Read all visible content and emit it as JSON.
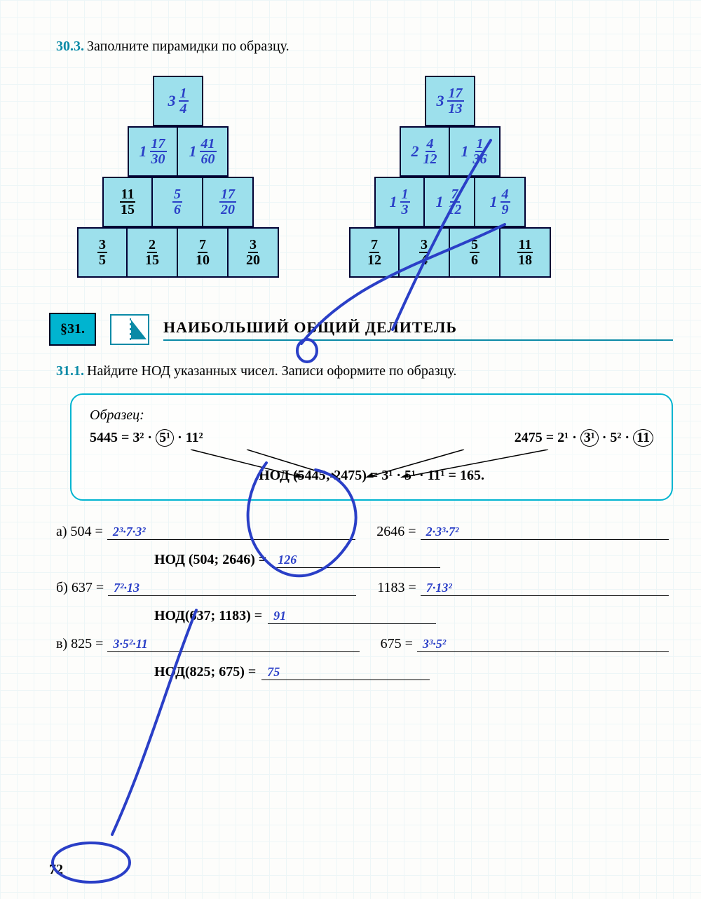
{
  "page_number": "72",
  "colors": {
    "accent": "#0a8aa6",
    "brick_fill": "#9de0ec",
    "brick_border": "#003355",
    "handwriting": "#2a3fc7",
    "sample_border": "#00b4d0",
    "text": "#000000",
    "grid": "#e4f3f6",
    "background": "#fdfdfb"
  },
  "ex30_3": {
    "number": "30.3.",
    "text": "Заполните пирамидки по образцу.",
    "pyramid_left": {
      "row4": [
        {
          "w": "3",
          "n": "1",
          "d": "4",
          "hw": true
        }
      ],
      "row3": [
        {
          "w": "1",
          "n": "17",
          "d": "30",
          "hw": true
        },
        {
          "w": "1",
          "n": "41",
          "d": "60",
          "hw": true
        }
      ],
      "row2": [
        {
          "n": "11",
          "d": "15",
          "hw": false
        },
        {
          "n": "5",
          "d": "6",
          "hw": true
        },
        {
          "n": "17",
          "d": "20",
          "hw": true
        }
      ],
      "row1": [
        {
          "n": "3",
          "d": "5",
          "hw": false
        },
        {
          "n": "2",
          "d": "15",
          "hw": false
        },
        {
          "n": "7",
          "d": "10",
          "hw": false
        },
        {
          "n": "3",
          "d": "20",
          "hw": false
        }
      ]
    },
    "pyramid_right": {
      "row4": [
        {
          "w": "3",
          "n": "17",
          "d": "13",
          "hw": true
        }
      ],
      "row3": [
        {
          "w": "2",
          "n": "4",
          "d": "12",
          "hw": true
        },
        {
          "w": "1",
          "n": "1",
          "d": "36",
          "hw": true
        }
      ],
      "row2": [
        {
          "w": "1",
          "n": "1",
          "d": "3",
          "hw": true
        },
        {
          "w": "1",
          "n": "7",
          "d": "12",
          "hw": true
        },
        {
          "w": "1",
          "n": "4",
          "d": "9",
          "hw": true
        }
      ],
      "row1": [
        {
          "n": "7",
          "d": "12",
          "hw": false
        },
        {
          "n": "3",
          "d": "4",
          "hw": false
        },
        {
          "n": "5",
          "d": "6",
          "hw": false
        },
        {
          "n": "11",
          "d": "18",
          "hw": false
        }
      ]
    }
  },
  "section31": {
    "tag": "§31.",
    "title": "НАИБОЛЬШИЙ ОБЩИЙ ДЕЛИТЕЛЬ"
  },
  "ex31_1": {
    "number": "31.1.",
    "text": "Найдите НОД указанных чисел. Записи оформите по образцу.",
    "sample": {
      "label": "Образец:",
      "left": "5445 = 3² · ⟨5¹⟩ · 11²",
      "right": "2475 = 2¹ · ⟨3¹⟩ · 5² · ⟨11⟩",
      "result": "НОД (5445; 2475) = 3¹ · 5¹ · 11¹ = 165."
    },
    "items": [
      {
        "letter": "а)",
        "left_label": "504 =",
        "left_ans": "2³·7·3²",
        "right_label": "2646 =",
        "right_ans": "2·3³·7²",
        "nod_label": "НОД (504; 2646) =",
        "nod_ans": "126"
      },
      {
        "letter": "б)",
        "left_label": "637 =",
        "left_ans": "7²·13",
        "right_label": "1183 =",
        "right_ans": "7·13²",
        "nod_label": "НОД(637; 1183) =",
        "nod_ans": "91"
      },
      {
        "letter": "в)",
        "left_label": "825 =",
        "left_ans": "3·5²·11",
        "right_label": "675 =",
        "right_ans": "3³·5²",
        "nod_label": "НОД(825; 675) =",
        "nod_ans": "75"
      }
    ]
  }
}
